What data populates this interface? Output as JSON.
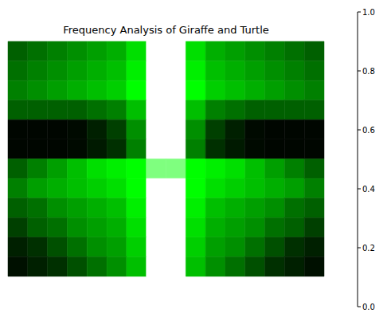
{
  "chart_data": {
    "type": "heatmap",
    "title": "Frequency Analysis of Giraffe and Turtle",
    "tick_labels": false,
    "cells": [
      [
        0.3,
        0.35,
        0.4,
        0.45,
        0.5,
        0.55,
        0.7,
        1.0,
        1.0,
        0.7,
        0.55,
        0.5,
        0.45,
        0.4,
        0.35,
        0.3
      ],
      [
        0.35,
        0.4,
        0.45,
        0.5,
        0.55,
        0.6,
        0.75,
        1.0,
        1.0,
        0.75,
        0.6,
        0.55,
        0.5,
        0.45,
        0.4,
        0.35
      ],
      [
        0.4,
        0.45,
        0.5,
        0.55,
        0.6,
        0.65,
        0.8,
        1.0,
        1.0,
        0.8,
        0.65,
        0.6,
        0.55,
        0.5,
        0.45,
        0.4
      ],
      [
        0.3,
        0.3,
        0.3,
        0.3,
        0.35,
        0.4,
        0.6,
        1.0,
        1.0,
        0.6,
        0.4,
        0.35,
        0.3,
        0.3,
        0.3,
        0.3
      ],
      [
        0.02,
        0.02,
        0.02,
        0.03,
        0.1,
        0.2,
        0.45,
        1.0,
        1.0,
        0.45,
        0.2,
        0.1,
        0.03,
        0.02,
        0.02,
        0.02
      ],
      [
        0.02,
        0.02,
        0.02,
        0.03,
        0.08,
        0.15,
        0.4,
        1.0,
        1.0,
        0.4,
        0.15,
        0.08,
        0.03,
        0.02,
        0.02,
        0.02
      ],
      [
        0.3,
        0.4,
        0.5,
        0.6,
        0.7,
        0.75,
        0.8,
        0.9,
        0.9,
        0.8,
        0.75,
        0.7,
        0.6,
        0.5,
        0.4,
        0.3
      ],
      [
        0.4,
        0.5,
        0.55,
        0.6,
        0.65,
        0.7,
        0.8,
        1.0,
        1.0,
        0.8,
        0.7,
        0.65,
        0.6,
        0.55,
        0.5,
        0.4
      ],
      [
        0.3,
        0.35,
        0.45,
        0.5,
        0.55,
        0.6,
        0.75,
        1.0,
        1.0,
        0.75,
        0.6,
        0.55,
        0.5,
        0.45,
        0.35,
        0.3
      ],
      [
        0.2,
        0.3,
        0.35,
        0.45,
        0.5,
        0.55,
        0.7,
        1.0,
        1.0,
        0.7,
        0.55,
        0.5,
        0.45,
        0.35,
        0.3,
        0.2
      ],
      [
        0.1,
        0.15,
        0.25,
        0.35,
        0.45,
        0.5,
        0.65,
        1.0,
        1.0,
        0.65,
        0.5,
        0.45,
        0.35,
        0.25,
        0.15,
        0.1
      ],
      [
        0.05,
        0.1,
        0.15,
        0.25,
        0.35,
        0.45,
        0.6,
        1.0,
        1.0,
        0.6,
        0.45,
        0.35,
        0.25,
        0.15,
        0.1,
        0.05
      ]
    ],
    "colorbar": {
      "range": [
        0,
        1
      ],
      "ticks": [
        {
          "value": 0,
          "label": "0.0"
        },
        {
          "value": 0.2,
          "label": "0.2"
        },
        {
          "value": 0.4,
          "label": "0.4"
        },
        {
          "value": 0.6,
          "label": "0.6"
        },
        {
          "value": 0.8,
          "label": "0.8"
        },
        {
          "value": 1,
          "label": "1.0"
        }
      ]
    }
  }
}
